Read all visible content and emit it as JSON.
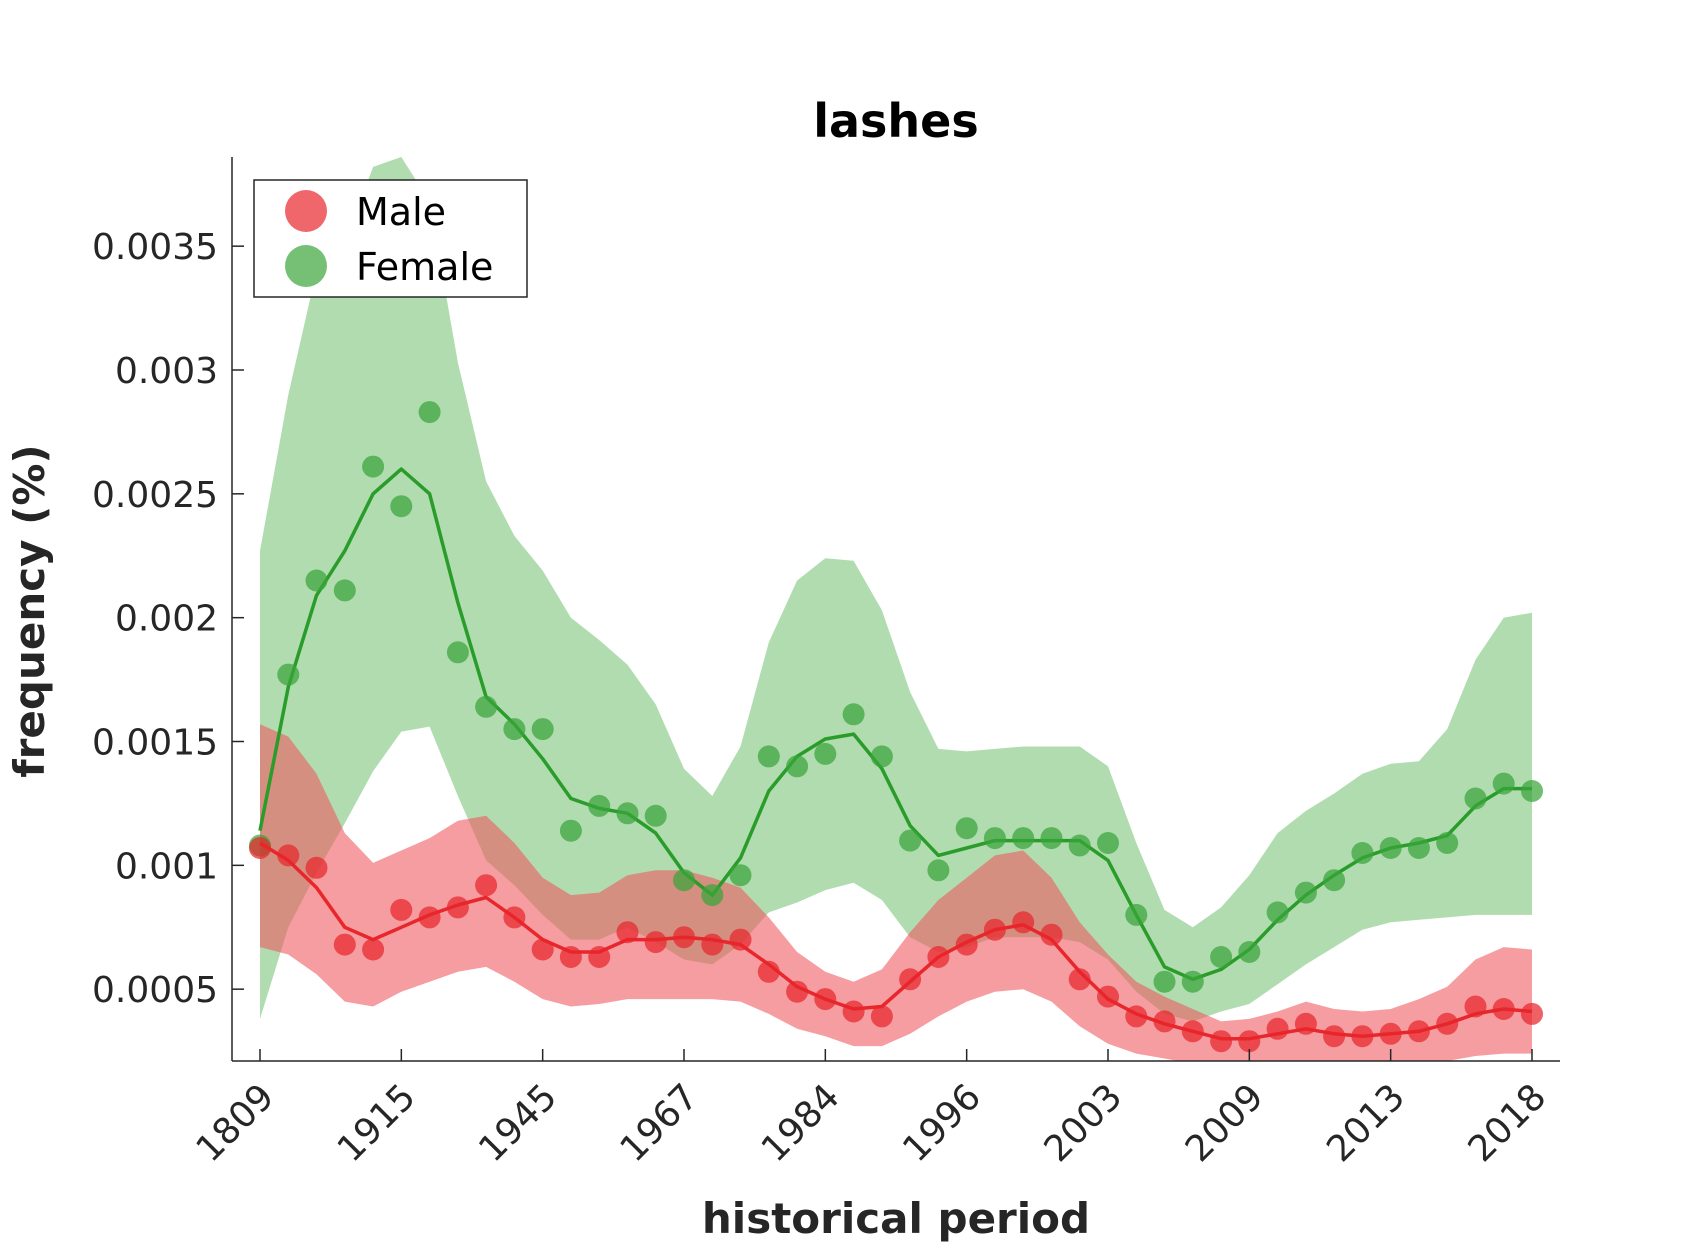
{
  "chart_data": {
    "type": "line",
    "title": "lashes",
    "xlabel": "historical period",
    "ylabel": "frequency (%)",
    "ylim": [
      0.00021,
      0.00386
    ],
    "y_ticks": [
      "0.0005",
      "0.001",
      "0.0015",
      "0.002",
      "0.0025",
      "0.003",
      "0.0035"
    ],
    "y_tick_values": [
      0.0005,
      0.001,
      0.0015,
      0.002,
      0.0025,
      0.003,
      0.0035
    ],
    "x_tick_labels": [
      "1809",
      "1915",
      "1945",
      "1967",
      "1984",
      "1996",
      "2003",
      "2009",
      "2013",
      "2018"
    ],
    "x_tick_index": [
      0,
      5,
      10,
      15,
      20,
      25,
      30,
      35,
      40,
      45
    ],
    "legend": {
      "position": "top-left",
      "entries": [
        "Male",
        "Female"
      ]
    },
    "grid": false,
    "series": [
      {
        "name": "Male",
        "color": "#e8262b",
        "marker_color": "#e8262b",
        "band_color": "#ee5c61",
        "points": [
          0.00107,
          0.00104,
          0.00099,
          0.00068,
          0.00066,
          0.00082,
          0.00079,
          0.00083,
          0.00092,
          0.00079,
          0.00066,
          0.00063,
          0.00063,
          0.00073,
          0.00069,
          0.00071,
          0.00068,
          0.0007,
          0.00057,
          0.00049,
          0.00046,
          0.00041,
          0.00039,
          0.00054,
          0.00063,
          0.00068,
          0.00074,
          0.00077,
          0.00072,
          0.00054,
          0.00047,
          0.00039,
          0.00037,
          0.00033,
          0.00029,
          0.00029,
          0.00034,
          0.00036,
          0.00031,
          0.00031,
          0.00032,
          0.00033,
          0.00036,
          0.00043,
          0.00042,
          0.0004
        ],
        "trend": [
          0.00109,
          0.00102,
          0.00091,
          0.00075,
          0.0007,
          0.00075,
          0.0008,
          0.00084,
          0.00087,
          0.00079,
          0.0007,
          0.00065,
          0.00065,
          0.0007,
          0.0007,
          0.00071,
          0.0007,
          0.00068,
          0.0006,
          0.00051,
          0.00046,
          0.00042,
          0.00043,
          0.00053,
          0.00063,
          0.00069,
          0.00074,
          0.00076,
          0.0007,
          0.00057,
          0.00046,
          0.0004,
          0.00036,
          0.00033,
          0.0003,
          0.0003,
          0.00032,
          0.00034,
          0.00032,
          0.00031,
          0.00032,
          0.00033,
          0.00036,
          0.0004,
          0.00042,
          0.00041
        ],
        "band_upper": [
          0.00157,
          0.00152,
          0.00137,
          0.00113,
          0.00101,
          0.00106,
          0.00111,
          0.00118,
          0.0012,
          0.00109,
          0.00095,
          0.00088,
          0.00089,
          0.00096,
          0.00098,
          0.00098,
          0.00095,
          0.00091,
          0.00079,
          0.00065,
          0.00057,
          0.00053,
          0.00058,
          0.00073,
          0.00086,
          0.00095,
          0.00104,
          0.00106,
          0.00095,
          0.00077,
          0.00064,
          0.00053,
          0.00047,
          0.00042,
          0.00037,
          0.00038,
          0.00041,
          0.00045,
          0.00042,
          0.00041,
          0.00042,
          0.00046,
          0.00051,
          0.00062,
          0.00067,
          0.00066
        ],
        "band_lower": [
          0.00067,
          0.00064,
          0.00056,
          0.00045,
          0.00043,
          0.00049,
          0.00053,
          0.00057,
          0.00059,
          0.00053,
          0.00046,
          0.00043,
          0.00044,
          0.00046,
          0.00046,
          0.00046,
          0.00046,
          0.00045,
          0.0004,
          0.00034,
          0.00031,
          0.00027,
          0.00027,
          0.00032,
          0.00039,
          0.00045,
          0.00049,
          0.0005,
          0.00045,
          0.00035,
          0.00028,
          0.00024,
          0.00022,
          0.0002,
          0.00018,
          0.00018,
          0.0002,
          0.00021,
          0.00019,
          0.00018,
          0.00019,
          0.0002,
          0.00021,
          0.00023,
          0.00024,
          0.00024
        ]
      },
      {
        "name": "Female",
        "color": "#2a9c2a",
        "marker_color": "#3aa53a",
        "band_color": "#7cc57c",
        "points": [
          0.00108,
          0.00177,
          0.00215,
          0.00211,
          0.00261,
          0.00245,
          0.00283,
          0.00186,
          0.00164,
          0.00155,
          0.00155,
          0.00114,
          0.00124,
          0.00121,
          0.0012,
          0.00094,
          0.00088,
          0.00096,
          0.00144,
          0.0014,
          0.00145,
          0.00161,
          0.00144,
          0.0011,
          0.00098,
          0.00115,
          0.00111,
          0.00111,
          0.00111,
          0.00108,
          0.00109,
          0.0008,
          0.00053,
          0.00053,
          0.00063,
          0.00065,
          0.00081,
          0.00089,
          0.00094,
          0.00105,
          0.00107,
          0.00107,
          0.00109,
          0.00127,
          0.00133,
          0.0013
        ],
        "trend": [
          0.00114,
          0.00172,
          0.00209,
          0.00227,
          0.0025,
          0.0026,
          0.0025,
          0.00206,
          0.00168,
          0.00157,
          0.00143,
          0.00127,
          0.00123,
          0.00121,
          0.00113,
          0.00097,
          0.00088,
          0.00103,
          0.0013,
          0.00144,
          0.00151,
          0.00153,
          0.00139,
          0.00116,
          0.00104,
          0.00107,
          0.0011,
          0.0011,
          0.0011,
          0.0011,
          0.00102,
          0.0008,
          0.00059,
          0.00054,
          0.00058,
          0.00066,
          0.00078,
          0.00088,
          0.00096,
          0.00103,
          0.00107,
          0.00109,
          0.00112,
          0.00124,
          0.00131,
          0.00131
        ],
        "band_upper": [
          0.00227,
          0.0029,
          0.0034,
          0.00351,
          0.00382,
          0.00386,
          0.00368,
          0.00303,
          0.00255,
          0.00233,
          0.00219,
          0.002,
          0.00191,
          0.00181,
          0.00165,
          0.00139,
          0.00128,
          0.00148,
          0.0019,
          0.00215,
          0.00224,
          0.00223,
          0.00203,
          0.0017,
          0.00147,
          0.00146,
          0.00147,
          0.00148,
          0.00148,
          0.00148,
          0.0014,
          0.00109,
          0.00082,
          0.00075,
          0.00083,
          0.00096,
          0.00113,
          0.00122,
          0.00129,
          0.00137,
          0.00141,
          0.00142,
          0.00155,
          0.00183,
          0.002,
          0.00202
        ],
        "band_lower": [
          0.00038,
          0.00075,
          0.00097,
          0.00117,
          0.00138,
          0.00154,
          0.00156,
          0.00128,
          0.00102,
          0.00092,
          0.0008,
          0.0007,
          0.0007,
          0.00075,
          0.00069,
          0.00062,
          0.0006,
          0.00068,
          0.00081,
          0.00085,
          0.0009,
          0.00093,
          0.00086,
          0.00071,
          0.00065,
          0.00067,
          0.00071,
          0.00071,
          0.00071,
          0.00069,
          0.00062,
          0.00049,
          0.0004,
          0.00037,
          0.00041,
          0.00044,
          0.00052,
          0.0006,
          0.00067,
          0.00074,
          0.00077,
          0.00078,
          0.00079,
          0.0008,
          0.0008,
          0.0008
        ]
      }
    ]
  }
}
